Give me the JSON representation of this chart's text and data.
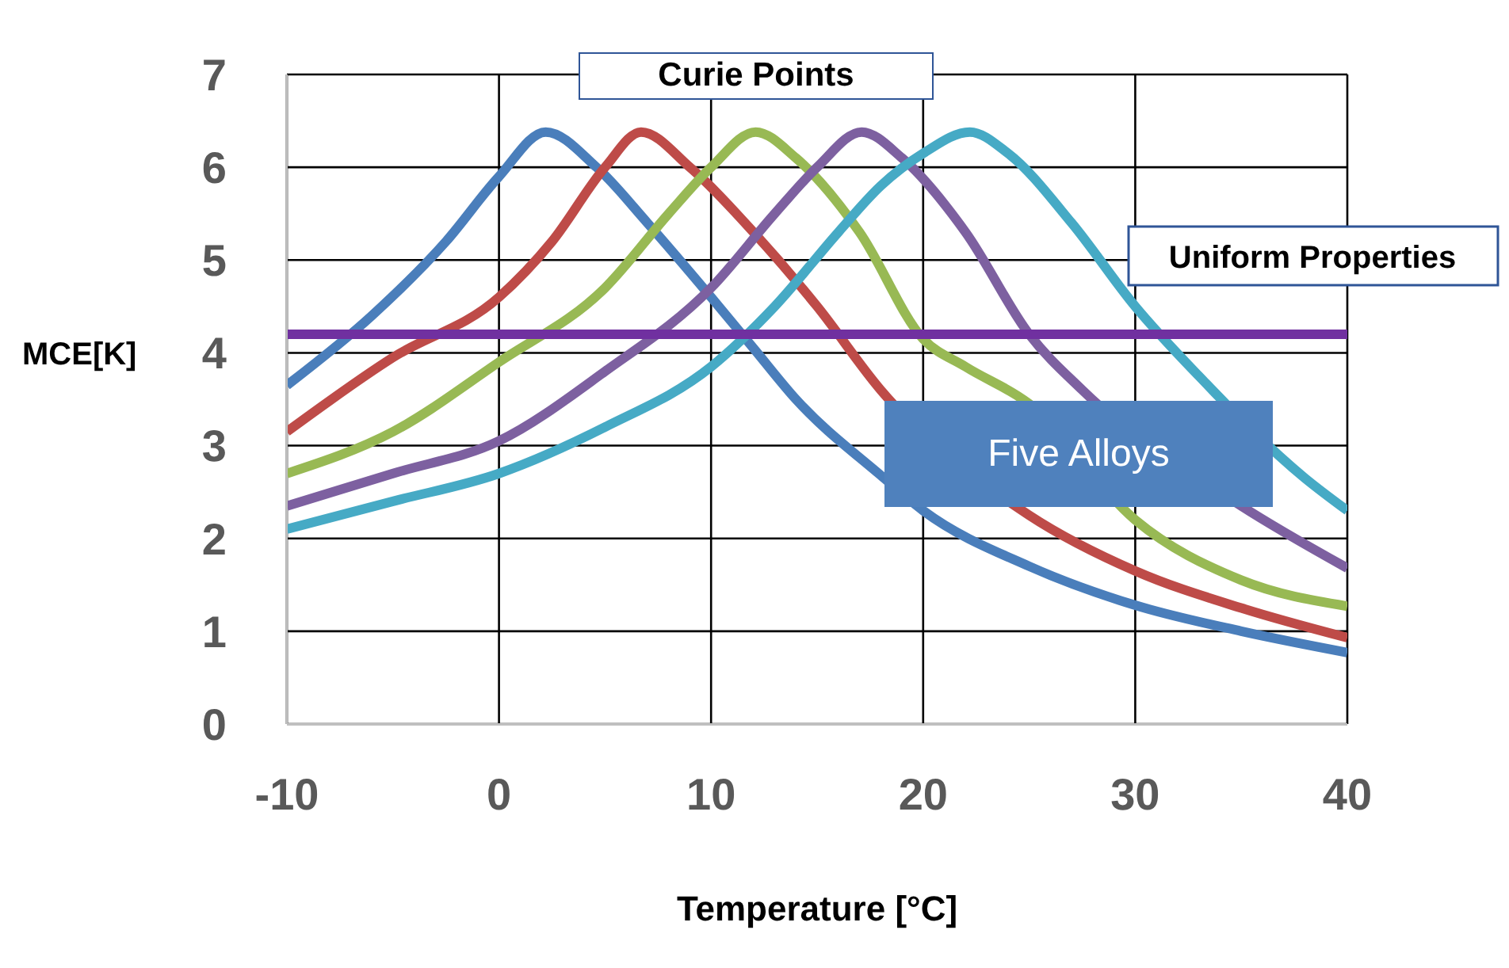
{
  "chart_data": {
    "type": "line",
    "xlabel": "Temperature [°C]",
    "ylabel": "MCE[K]",
    "xlim": [
      -10,
      40
    ],
    "xticks": [
      -10,
      0,
      10,
      20,
      30,
      40
    ],
    "ylim": [
      0,
      7
    ],
    "yticks": [
      0,
      1,
      2,
      3,
      4,
      5,
      6,
      7
    ],
    "grid": true,
    "series": [
      {
        "color": "#4a7ebb",
        "x": [
          -10,
          -6,
          -2.5,
          0,
          2.2,
          4.6,
          7,
          10,
          12,
          14,
          18,
          20,
          25,
          30,
          35,
          40
        ],
        "values": [
          3.65,
          4.4,
          5.2,
          5.9,
          6.38,
          6,
          5.4,
          4.6,
          4.05,
          3.5,
          2.68,
          2.3,
          1.7,
          1.28,
          1,
          0.77
        ]
      },
      {
        "color": "#be4b48",
        "x": [
          -10,
          -5,
          0,
          2.5,
          5,
          6.7,
          9,
          12,
          15,
          18,
          25,
          30,
          35,
          40
        ],
        "values": [
          3.15,
          3.95,
          4.6,
          5.2,
          6,
          6.38,
          6,
          5.3,
          4.5,
          3.6,
          2.25,
          1.65,
          1.25,
          0.93
        ]
      },
      {
        "color": "#98b954",
        "x": [
          -10,
          -5,
          0,
          5,
          8,
          10,
          12.1,
          14,
          17,
          20,
          22,
          25,
          30,
          35,
          40
        ],
        "values": [
          2.7,
          3.15,
          3.9,
          4.7,
          5.5,
          6,
          6.38,
          6.1,
          5.3,
          4.15,
          3.85,
          3.45,
          2.2,
          1.55,
          1.27
        ]
      },
      {
        "color": "#7d60a0",
        "x": [
          -10,
          -5,
          0,
          5,
          10,
          13,
          15,
          17.1,
          19,
          22,
          25,
          27.5,
          35,
          40
        ],
        "values": [
          2.35,
          2.7,
          3.05,
          3.8,
          4.7,
          5.5,
          6,
          6.38,
          6.1,
          5.3,
          4.2,
          3.6,
          2.35,
          1.68
        ]
      },
      {
        "color": "#46aac5",
        "x": [
          -10,
          -5,
          0,
          5,
          10,
          13,
          16,
          18,
          20,
          22.2,
          24,
          27,
          30,
          33,
          38,
          40
        ],
        "values": [
          2.1,
          2.4,
          2.7,
          3.2,
          3.85,
          4.5,
          5.3,
          5.8,
          6.15,
          6.38,
          6.15,
          5.4,
          4.5,
          3.75,
          2.65,
          2.3
        ]
      }
    ],
    "ref_lines": [
      {
        "axis": "y",
        "value": 4.2,
        "label": "Uniform Properties",
        "color": "#7030a0"
      }
    ],
    "annotations": [
      "Curie Points",
      "Five Alloys"
    ]
  }
}
